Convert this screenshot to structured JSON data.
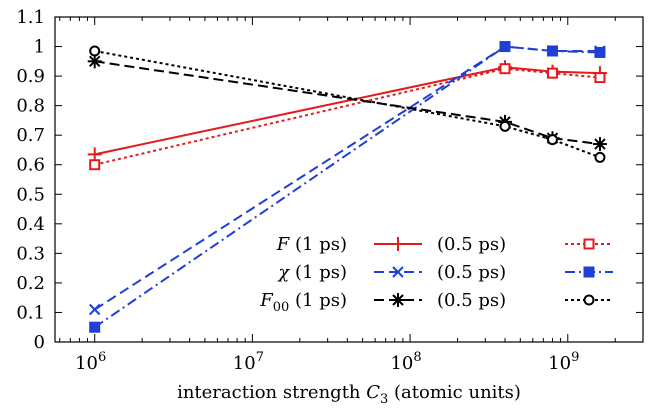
{
  "chart_data": {
    "type": "line",
    "x_scale": "log",
    "xlabel": "interaction strength C3 (atomic units)",
    "xlabel_parts": {
      "prefix": "interaction strength ",
      "symbol": "C",
      "subscript": "3",
      "suffix": " (atomic units)"
    },
    "xlim": [
      560000,
      3000000000
    ],
    "ylim": [
      0,
      1.1
    ],
    "x_ticks": [
      1000000,
      10000000,
      100000000,
      1000000000
    ],
    "x_tick_labels": [
      {
        "base": "10",
        "exp": "6"
      },
      {
        "base": "10",
        "exp": "7"
      },
      {
        "base": "10",
        "exp": "8"
      },
      {
        "base": "10",
        "exp": "9"
      }
    ],
    "y_ticks": [
      0,
      0.1,
      0.2,
      0.3,
      0.4,
      0.5,
      0.6,
      0.7,
      0.8,
      0.9,
      1,
      1.1
    ],
    "y_tick_labels": [
      "0",
      "0.1",
      "0.2",
      "0.3",
      "0.4",
      "0.5",
      "0.6",
      "0.7",
      "0.8",
      "0.9",
      "1",
      "1.1"
    ],
    "grid": false,
    "legend_position": "bottom-right",
    "x": [
      1000000,
      400000000,
      800000000,
      1600000000
    ],
    "series": [
      {
        "name": "F (1 ps)",
        "color": "#e41a1c",
        "dash": "solid",
        "marker": "plus",
        "values": [
          0.635,
          0.93,
          0.915,
          0.91
        ]
      },
      {
        "name": "(0.5 ps)",
        "color": "#e41a1c",
        "dash": "dotted",
        "marker": "open-square",
        "values": [
          0.6,
          0.925,
          0.91,
          0.895
        ]
      },
      {
        "name": "χ (1 ps)",
        "color": "#1f3fd6",
        "dash": "dashed",
        "marker": "cross",
        "values": [
          0.11,
          1.0,
          0.985,
          0.985
        ]
      },
      {
        "name": "(0.5 ps)",
        "color": "#1f3fd6",
        "dash": "dashdot",
        "marker": "filled-square",
        "values": [
          0.05,
          1.0,
          0.985,
          0.98
        ]
      },
      {
        "name": "F00 (1 ps)",
        "color": "#000000",
        "dash": "dashed",
        "marker": "star",
        "values": [
          0.95,
          0.745,
          0.69,
          0.67
        ]
      },
      {
        "name": "(0.5 ps)",
        "color": "#000000",
        "dash": "dotted",
        "marker": "open-circle",
        "values": [
          0.985,
          0.73,
          0.685,
          0.625
        ]
      }
    ],
    "legend_rows": [
      {
        "label_1ps": {
          "sym": "F",
          "sub": "",
          "text": " (1 ps)"
        },
        "label_half": "(0.5 ps)",
        "series_1ps": 0,
        "series_half": 1
      },
      {
        "label_1ps": {
          "sym": "χ",
          "sub": "",
          "text": " (1 ps)"
        },
        "label_half": "(0.5 ps)",
        "series_1ps": 2,
        "series_half": 3
      },
      {
        "label_1ps": {
          "sym": "F",
          "sub": "00",
          "text": " (1 ps)"
        },
        "label_half": "(0.5 ps)",
        "series_1ps": 4,
        "series_half": 5
      }
    ]
  }
}
